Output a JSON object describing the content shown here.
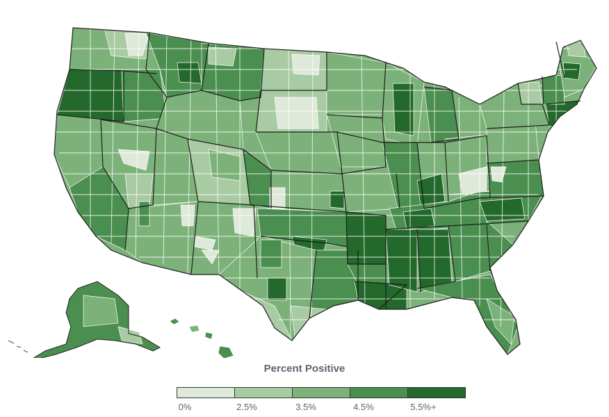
{
  "legend": {
    "title": "Percent Positive",
    "bins": [
      {
        "label": "0%",
        "color": "#dfe9d9"
      },
      {
        "label": "2.5%",
        "color": "#a9cba3"
      },
      {
        "label": "3.5%",
        "color": "#7cb27a"
      },
      {
        "label": "4.5%",
        "color": "#4a8f4f"
      },
      {
        "label": "5.5%+",
        "color": "#23692b"
      }
    ]
  },
  "colors": {
    "no_data": "#ffffff",
    "boundary": "#1c1c1c",
    "region_line": "#ffffff"
  }
}
